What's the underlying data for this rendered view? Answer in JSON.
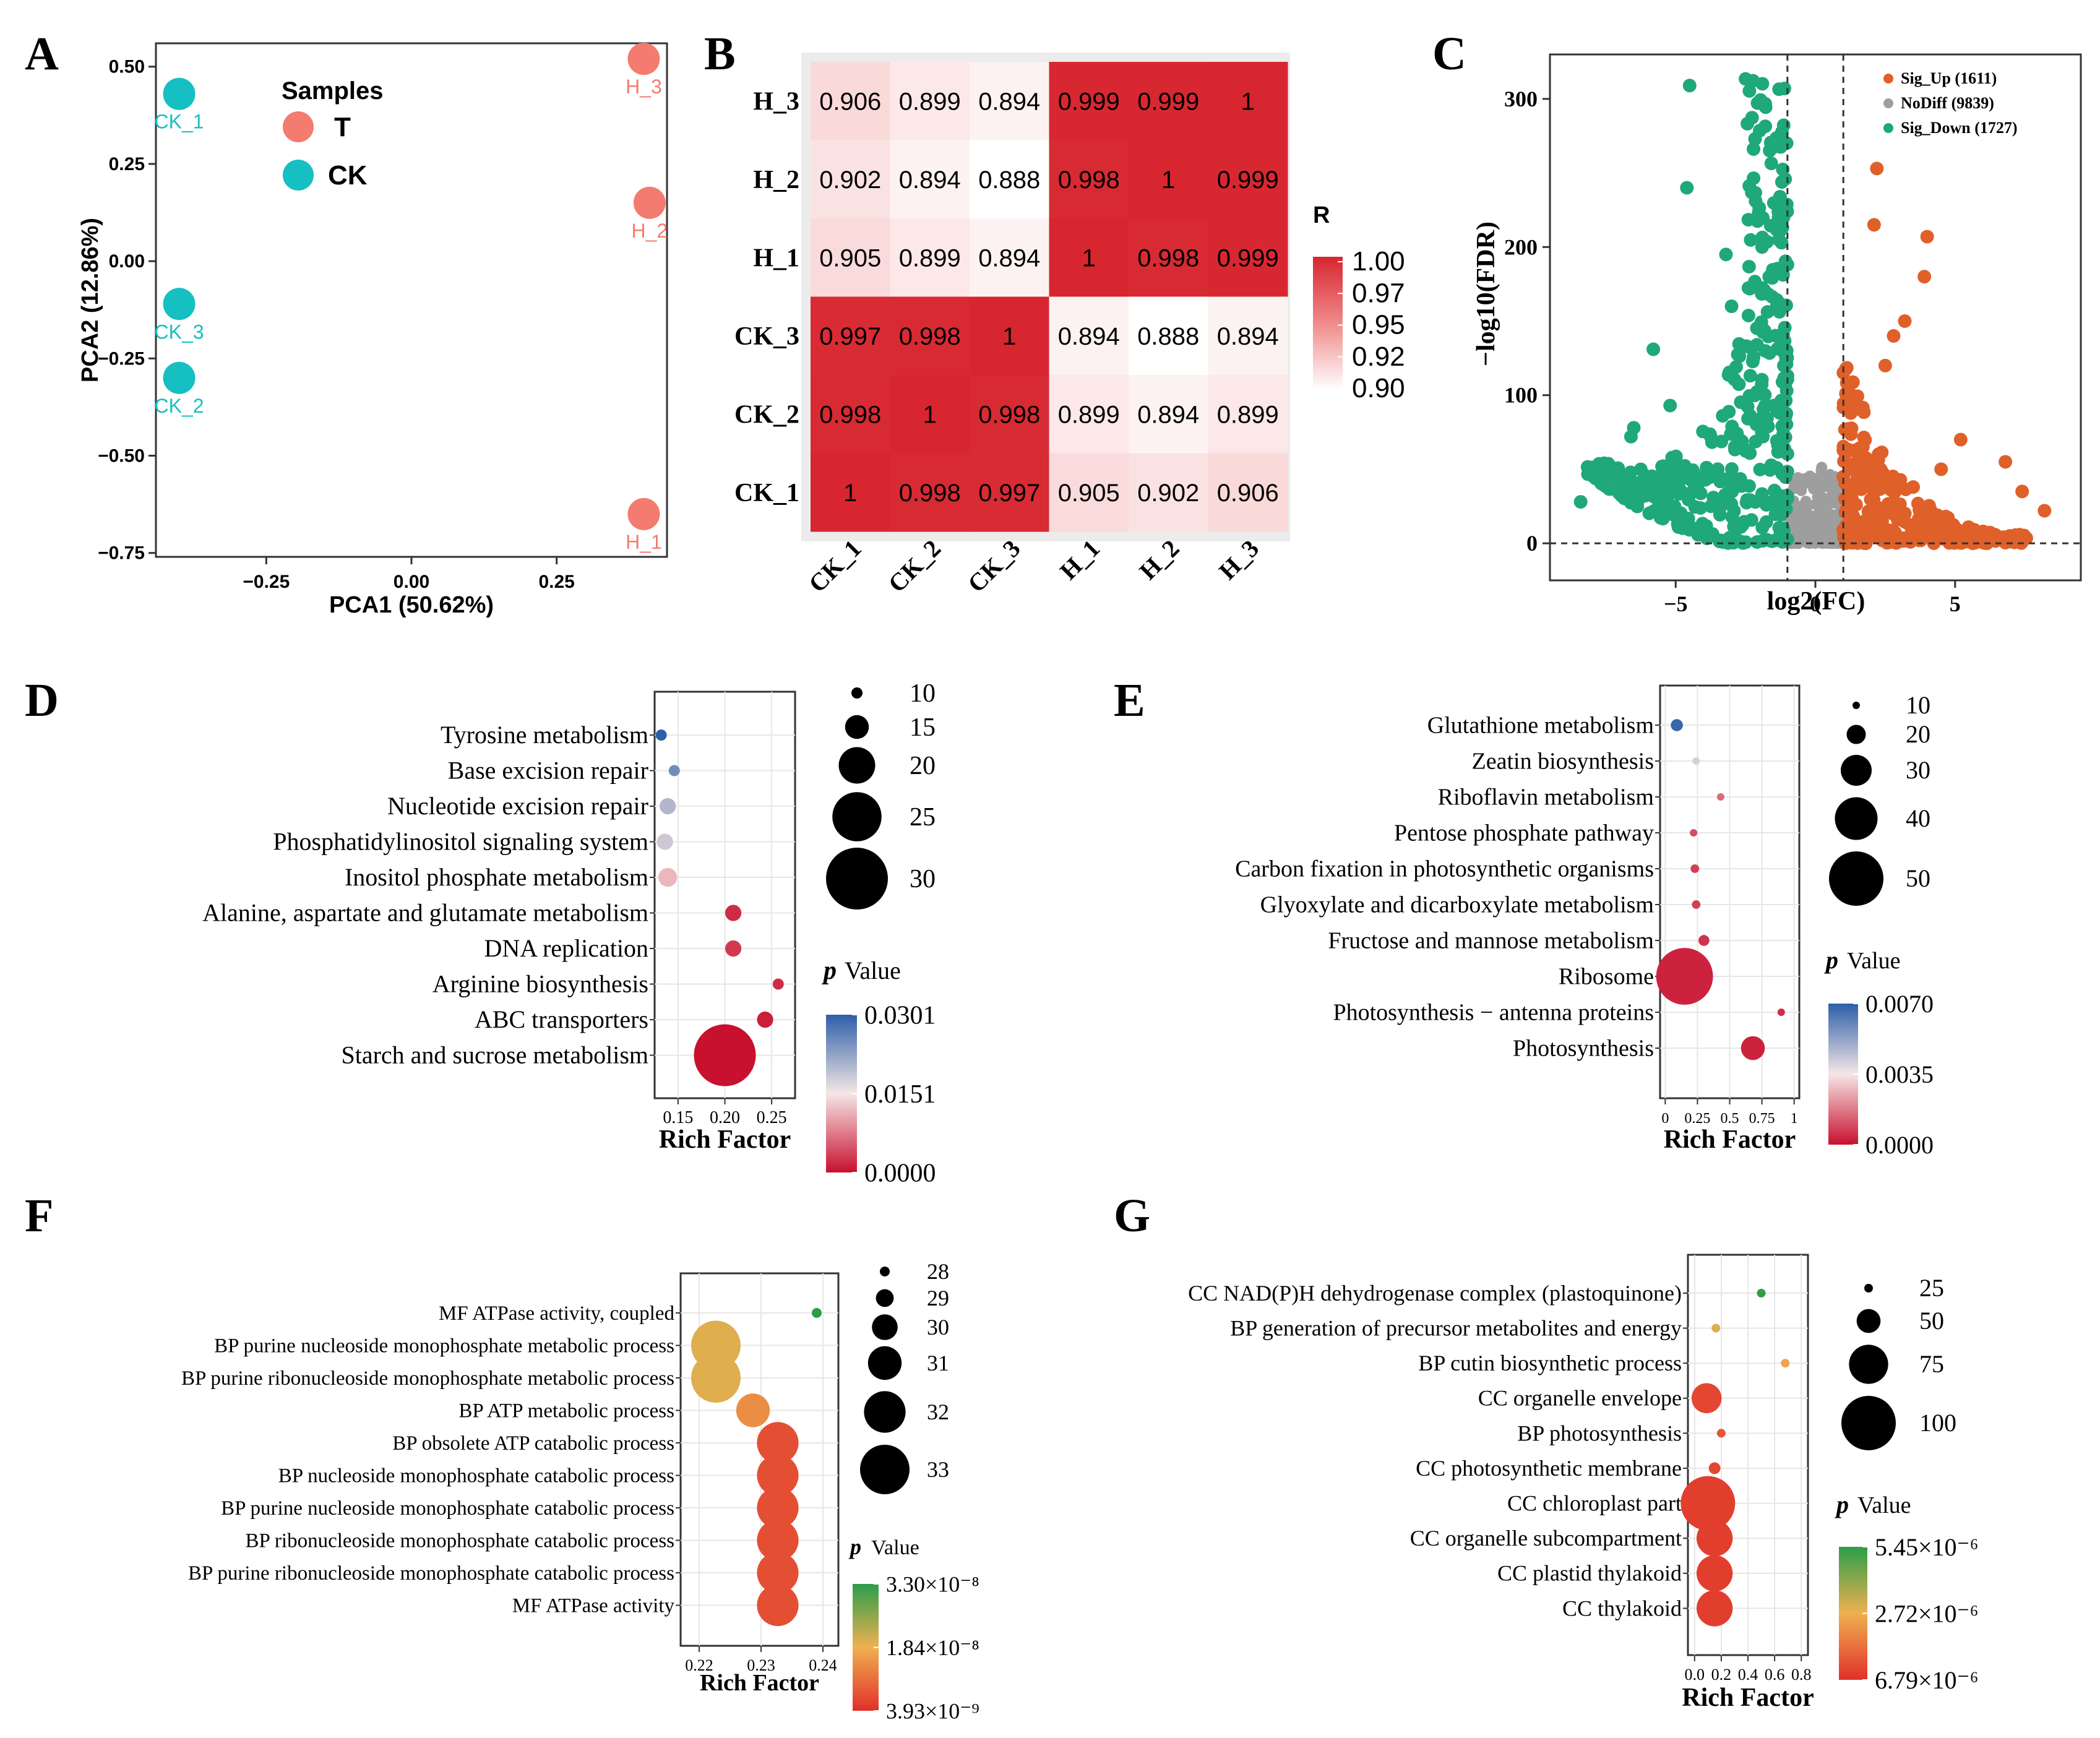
{
  "panel_letters": [
    "A",
    "B",
    "C",
    "D",
    "E",
    "F",
    "G"
  ],
  "colors": {
    "teal": "#16bfc2",
    "salmon": "#f47b6f",
    "green": "#1fa87a",
    "orange": "#e0602a",
    "gray": "#9e9e9e",
    "red": "#d7262f",
    "blue": "#2d5fa8",
    "gold": "#f0b050",
    "dgreen": "#2b9e4a"
  },
  "chart_data": [
    {
      "id": "A",
      "type": "scatter",
      "xlabel": "PCA1 (50.62%)",
      "ylabel": "PCA2 (12.86%)",
      "xlim": [
        -0.44,
        0.44
      ],
      "ylim": [
        -0.76,
        0.56
      ],
      "xticks": [
        "−0.25",
        "0.00",
        "0.25"
      ],
      "xtick_values": [
        -0.25,
        0,
        0.25
      ],
      "yticks": [
        "0.50",
        "0.25",
        "0.00",
        "−0.25",
        "−0.50",
        "−0.75"
      ],
      "ytick_values": [
        0.5,
        0.25,
        0,
        -0.25,
        -0.5,
        -0.75
      ],
      "legend": {
        "title": "Samples",
        "entries": [
          "T",
          "CK"
        ]
      },
      "points": [
        {
          "label": "CK_1",
          "group": "CK",
          "x": -0.4,
          "y": 0.43
        },
        {
          "label": "CK_3",
          "group": "CK",
          "x": -0.4,
          "y": -0.11
        },
        {
          "label": "CK_2",
          "group": "CK",
          "x": -0.4,
          "y": -0.3
        },
        {
          "label": "H_3",
          "group": "T",
          "x": 0.4,
          "y": 0.52
        },
        {
          "label": "H_2",
          "group": "T",
          "x": 0.41,
          "y": 0.15
        },
        {
          "label": "H_1",
          "group": "T",
          "x": 0.4,
          "y": -0.65
        }
      ]
    },
    {
      "id": "B",
      "type": "heatmap",
      "rows": [
        "H_3",
        "H_2",
        "H_1",
        "CK_3",
        "CK_2",
        "CK_1"
      ],
      "cols": [
        "CK_1",
        "CK_2",
        "CK_3",
        "H_1",
        "H_2",
        "H_3"
      ],
      "values": [
        [
          "0.906",
          "0.899",
          "0.894",
          "0.999",
          "0.999",
          "1"
        ],
        [
          "0.902",
          "0.894",
          "0.888",
          "0.998",
          "1",
          "0.999"
        ],
        [
          "0.905",
          "0.899",
          "0.894",
          "1",
          "0.998",
          "0.999"
        ],
        [
          "0.997",
          "0.998",
          "1",
          "0.894",
          "0.888",
          "0.894"
        ],
        [
          "0.998",
          "1",
          "0.998",
          "0.899",
          "0.894",
          "0.899"
        ],
        [
          "1",
          "0.998",
          "0.997",
          "0.905",
          "0.902",
          "0.906"
        ]
      ],
      "legend_title": "R",
      "legend_ticks": [
        "1.00",
        "0.97",
        "0.95",
        "0.92",
        "0.90"
      ],
      "range": [
        0.888,
        1.0
      ]
    },
    {
      "id": "C",
      "type": "scatter",
      "xlabel": "log2(FC)",
      "ylabel": "−log10(FDR)",
      "xlim": [
        -9.5,
        9.5
      ],
      "ylim": [
        -25,
        330
      ],
      "xticks": [
        "−5",
        "0",
        "5"
      ],
      "xtick_values": [
        -5,
        0,
        5
      ],
      "yticks": [
        "300",
        "200",
        "100",
        "0"
      ],
      "ytick_values": [
        300,
        200,
        100,
        0
      ],
      "legend": [
        "Sig_Up (1611)",
        "NoDiff (9839)",
        "Sig_Down (1727)"
      ],
      "cutoff_x": [
        -1,
        1
      ],
      "cutoff_y": 0
    },
    {
      "id": "D",
      "type": "scatter",
      "xlabel": "Rich Factor",
      "xticks": [
        "0.15",
        "0.20",
        "0.25"
      ],
      "xtick_values": [
        0.15,
        0.2,
        0.25
      ],
      "xlim": [
        0.125,
        0.275
      ],
      "size_legend": {
        "labels": [
          "10",
          "15",
          "20",
          "25",
          "30"
        ],
        "values": [
          10,
          15,
          20,
          25,
          30
        ]
      },
      "color_legend": {
        "title_italic": "p",
        "title": "Value",
        "labels": [
          "0.0301",
          "0.0151",
          "0.0000"
        ]
      },
      "terms": [
        {
          "name": "Tyrosine metabolism",
          "x": 0.132,
          "count": 10,
          "p": 0.0301
        },
        {
          "name": "Base excision repair",
          "x": 0.146,
          "count": 10,
          "p": 0.025
        },
        {
          "name": "Nucleotide excision repair",
          "x": 0.139,
          "count": 12,
          "p": 0.02
        },
        {
          "name": "Phosphatidylinositol signaling system",
          "x": 0.136,
          "count": 12,
          "p": 0.018
        },
        {
          "name": "Inositol phosphate metabolism",
          "x": 0.139,
          "count": 13,
          "p": 0.012
        },
        {
          "name": "Alanine, aspartate and glutamate metabolism",
          "x": 0.209,
          "count": 12,
          "p": 0.002
        },
        {
          "name": "DNA replication",
          "x": 0.209,
          "count": 12,
          "p": 0.003
        },
        {
          "name": "Arginine biosynthesis",
          "x": 0.257,
          "count": 10,
          "p": 0.002
        },
        {
          "name": "ABC transporters",
          "x": 0.243,
          "count": 12,
          "p": 0.001
        },
        {
          "name": "Starch and sucrose metabolism",
          "x": 0.2,
          "count": 30,
          "p": 0.0001
        }
      ]
    },
    {
      "id": "E",
      "type": "scatter",
      "xlabel": "Rich Factor",
      "xticks": [
        "0",
        "0.25",
        "0.5",
        "0.75",
        "1"
      ],
      "xtick_values": [
        0,
        0.25,
        0.5,
        0.75,
        1
      ],
      "xlim": [
        -0.04,
        1.04
      ],
      "size_legend": {
        "labels": [
          "10",
          "20",
          "30",
          "40",
          "50"
        ],
        "values": [
          10,
          20,
          30,
          40,
          50
        ]
      },
      "color_legend": {
        "title_italic": "p",
        "title": "Value",
        "labels": [
          "0.0070",
          "0.0035",
          "0.0000"
        ]
      },
      "terms": [
        {
          "name": "Glutathione metabolism",
          "x": 0.09,
          "count": 14,
          "p": 0.0068
        },
        {
          "name": "Zeatin biosynthesis",
          "x": 0.24,
          "count": 7,
          "p": 0.004
        },
        {
          "name": "Riboflavin metabolism",
          "x": 0.43,
          "count": 6,
          "p": 0.0015
        },
        {
          "name": "Pentose phosphate pathway",
          "x": 0.22,
          "count": 10,
          "p": 0.001
        },
        {
          "name": "Carbon fixation in photosynthetic organisms",
          "x": 0.23,
          "count": 11,
          "p": 0.0008
        },
        {
          "name": "Glyoxylate and dicarboxylate metabolism",
          "x": 0.24,
          "count": 11,
          "p": 0.0008
        },
        {
          "name": "Fructose and mannose metabolism",
          "x": 0.3,
          "count": 13,
          "p": 0.0006
        },
        {
          "name": "Ribosome",
          "x": 0.15,
          "count": 52,
          "p": 0.0003
        },
        {
          "name": "Photosynthesis − antenna proteins",
          "x": 0.9,
          "count": 9,
          "p": 0.0005
        },
        {
          "name": "Photosynthesis",
          "x": 0.68,
          "count": 24,
          "p": 0.0003
        }
      ]
    },
    {
      "id": "F",
      "type": "scatter",
      "xlabel": "Rich Factor",
      "xticks": [
        "0.22",
        "0.23",
        "0.24"
      ],
      "xtick_values": [
        0.22,
        0.23,
        0.24
      ],
      "xlim": [
        0.217,
        0.2425
      ],
      "size_legend": {
        "labels": [
          "28",
          "29",
          "30",
          "31",
          "32",
          "33"
        ],
        "values": [
          28,
          29,
          30,
          31,
          32,
          33
        ]
      },
      "color_legend": {
        "title_italic": "p",
        "title": "Value",
        "labels": [
          "3.30×10⁻⁸",
          "1.84×10⁻⁸",
          "3.93×10⁻⁹"
        ]
      },
      "terms": [
        {
          "name": "MF ATPase activity, coupled",
          "x": 0.239,
          "count": 28,
          "p": 3.3e-08
        },
        {
          "name": "BP purine nucleoside monophosphate metabolic process",
          "x": 0.2227,
          "count": 33,
          "p": 1.8e-08
        },
        {
          "name": "BP purine ribonucleoside monophosphate metabolic process",
          "x": 0.2227,
          "count": 33,
          "p": 1.8e-08
        },
        {
          "name": "BP ATP metabolic process",
          "x": 0.2287,
          "count": 31,
          "p": 1.2e-08
        },
        {
          "name": "BP obsolete ATP catabolic process",
          "x": 0.2327,
          "count": 32,
          "p": 4e-09
        },
        {
          "name": "BP nucleoside monophosphate catabolic process",
          "x": 0.2327,
          "count": 32,
          "p": 4e-09
        },
        {
          "name": "BP purine nucleoside monophosphate catabolic process",
          "x": 0.2327,
          "count": 32,
          "p": 4e-09
        },
        {
          "name": "BP ribonucleoside monophosphate catabolic process",
          "x": 0.2327,
          "count": 32,
          "p": 4e-09
        },
        {
          "name": "BP purine ribonucleoside monophosphate catabolic process",
          "x": 0.2327,
          "count": 32,
          "p": 4e-09
        },
        {
          "name": "MF ATPase activity",
          "x": 0.2327,
          "count": 32,
          "p": 4e-09
        }
      ]
    },
    {
      "id": "G",
      "type": "scatter",
      "xlabel": "Rich Factor",
      "xticks": [
        "0.0",
        "0.2",
        "0.4",
        "0.6",
        "0.8"
      ],
      "xtick_values": [
        0,
        0.2,
        0.4,
        0.6,
        0.8
      ],
      "xlim": [
        -0.05,
        0.85
      ],
      "size_legend": {
        "labels": [
          "25",
          "50",
          "75",
          "100"
        ],
        "values": [
          25,
          50,
          75,
          100
        ]
      },
      "color_legend": {
        "title_italic": "p",
        "title": "Value",
        "labels": [
          "5.45×10⁻⁶",
          "2.72×10⁻⁶",
          "6.79×10⁻⁶"
        ]
      },
      "terms": [
        {
          "name": "CC NAD(P)H dehydrogenase complex (plastoquinone)",
          "x": 0.5,
          "count": 10,
          "p": 5.4e-06
        },
        {
          "name": "BP generation of precursor metabolites and energy",
          "x": 0.16,
          "count": 15,
          "p": 3e-06
        },
        {
          "name": "BP cutin biosynthetic process",
          "x": 0.68,
          "count": 8,
          "p": 2.5e-06
        },
        {
          "name": "CC organelle envelope",
          "x": 0.09,
          "count": 60,
          "p": 5e-07
        },
        {
          "name": "BP photosynthesis",
          "x": 0.2,
          "count": 15,
          "p": 8e-07
        },
        {
          "name": "CC photosynthetic membrane",
          "x": 0.15,
          "count": 30,
          "p": 5e-07
        },
        {
          "name": "CC chloroplast part",
          "x": 0.1,
          "count": 100,
          "p": 3e-07
        },
        {
          "name": "CC organelle subcompartment",
          "x": 0.15,
          "count": 70,
          "p": 3e-07
        },
        {
          "name": "CC plastid thylakoid",
          "x": 0.15,
          "count": 70,
          "p": 3e-07
        },
        {
          "name": "CC thylakoid",
          "x": 0.15,
          "count": 70,
          "p": 3e-07
        }
      ]
    }
  ]
}
